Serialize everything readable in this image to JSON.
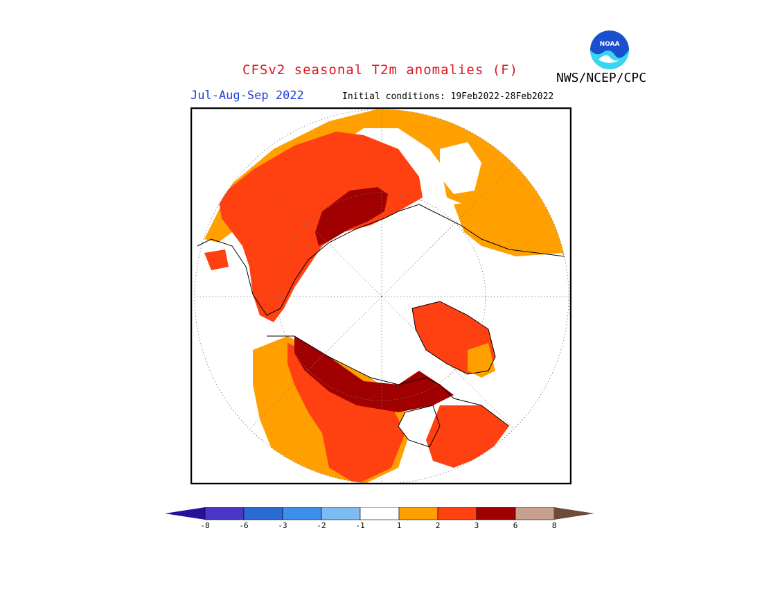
{
  "header": {
    "title": "CFSv2 seasonal T2m anomalies (F)",
    "agency": "NWS/NCEP/CPC",
    "season": "Jul-Aug-Sep 2022",
    "initial_conditions": "Initial conditions: 19Feb2022-28Feb2022",
    "logo_text": "NOAA"
  },
  "colorbar": {
    "ticks": [
      "-8",
      "-6",
      "-3",
      "-2",
      "-1",
      "1",
      "2",
      "3",
      "6",
      "8"
    ],
    "colors": [
      "#2a0f9a",
      "#4a37c8",
      "#2b69d3",
      "#3c8fea",
      "#7dbcf2",
      "#ffffff",
      "#ffa000",
      "#ff4010",
      "#a00000",
      "#c8a090",
      "#6e4a3a"
    ]
  },
  "map": {
    "projection": "north-polar-stereographic",
    "colors": {
      "cat1_2": "#ffa000",
      "cat2_3": "#ff4010",
      "cat3_6": "#a00000",
      "neutral": "#ffffff"
    }
  }
}
